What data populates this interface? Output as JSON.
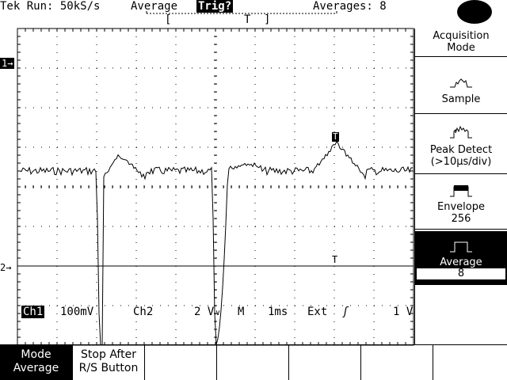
{
  "header": {
    "run_status": "Tek Run: 50kS/s",
    "mode": "Average",
    "trig_status": "Trig?",
    "averages": "Averages: 8",
    "record_bracket_left": "[",
    "record_trigger_marker": "T",
    "record_bracket_right": "]"
  },
  "markers": {
    "ch1_marker": "1→",
    "ch2_marker": "2→",
    "trigger_marker_waveform": "T",
    "trigger_level_marker": "T"
  },
  "readout": {
    "ch1_label": "Ch1",
    "ch1_scale": "100mV",
    "ch2_label": "Ch2",
    "ch2_scale": "2 V",
    "ch2_coupling": "∨",
    "timebase_label": "M",
    "timebase_scale": "1ms",
    "trigger_source": "Ext",
    "trigger_slope": "ʃ",
    "trigger_level": "1 V"
  },
  "side_menu": {
    "title_line1": "Acquisition",
    "title_line2": "Mode",
    "items": [
      {
        "label": "Sample",
        "selected": false
      },
      {
        "label": "Peak Detect",
        "sub": "(>10µs/div)",
        "selected": false
      },
      {
        "label": "Envelope",
        "sub": "256",
        "selected": false
      },
      {
        "label": "Average",
        "sub": "8",
        "selected": true
      }
    ]
  },
  "bottom_menu": {
    "items": [
      {
        "line1": "Mode",
        "line2": "Average",
        "selected": true
      },
      {
        "line1": "Stop After",
        "line2": "R/S Button",
        "selected": false
      },
      {
        "line1": "",
        "line2": "",
        "selected": false
      },
      {
        "line1": "",
        "line2": "",
        "selected": false
      },
      {
        "line1": "",
        "line2": "",
        "selected": false
      },
      {
        "line1": "",
        "line2": "",
        "selected": false
      },
      {
        "line1": "",
        "line2": "",
        "selected": false
      }
    ]
  },
  "colors": {
    "background": "#ffffff",
    "foreground": "#000000"
  }
}
